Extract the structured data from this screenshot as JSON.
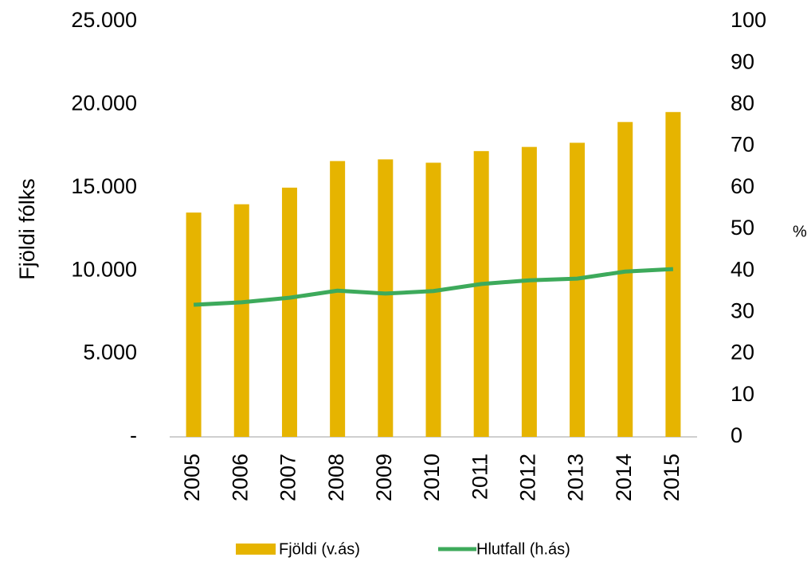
{
  "chart_data": {
    "type": "bar_line",
    "categories": [
      "2005",
      "2006",
      "2007",
      "2008",
      "2009",
      "2010",
      "2011",
      "2012",
      "2013",
      "2014",
      "2015"
    ],
    "series": [
      {
        "name": "Fjöldi (v.ás)",
        "type": "bar",
        "color": "#e6b400",
        "values": [
          13500,
          14000,
          15000,
          16600,
          16700,
          16500,
          17200,
          17450,
          17700,
          18950,
          19550
        ]
      },
      {
        "name": "Hlutfall (h.ás)",
        "type": "line",
        "axis": "y2",
        "color": "#3daa5b",
        "values": [
          31.8,
          32.4,
          33.5,
          35.2,
          34.5,
          35.1,
          36.8,
          37.7,
          38.1,
          39.8,
          40.4
        ]
      }
    ],
    "ylabel": "Fjöldi fólks",
    "y2label": "%",
    "ylim": [
      0,
      25000
    ],
    "yticks": [
      {
        "value": 0,
        "label": "-"
      },
      {
        "value": 5000,
        "label": "5.000"
      },
      {
        "value": 10000,
        "label": "10.000"
      },
      {
        "value": 15000,
        "label": "15.000"
      },
      {
        "value": 20000,
        "label": "20.000"
      },
      {
        "value": 25000,
        "label": "25.000"
      }
    ],
    "y2lim": [
      0,
      100
    ],
    "y2ticks": [
      0,
      10,
      20,
      30,
      40,
      50,
      60,
      70,
      80,
      90,
      100
    ],
    "legend": "bottom"
  }
}
